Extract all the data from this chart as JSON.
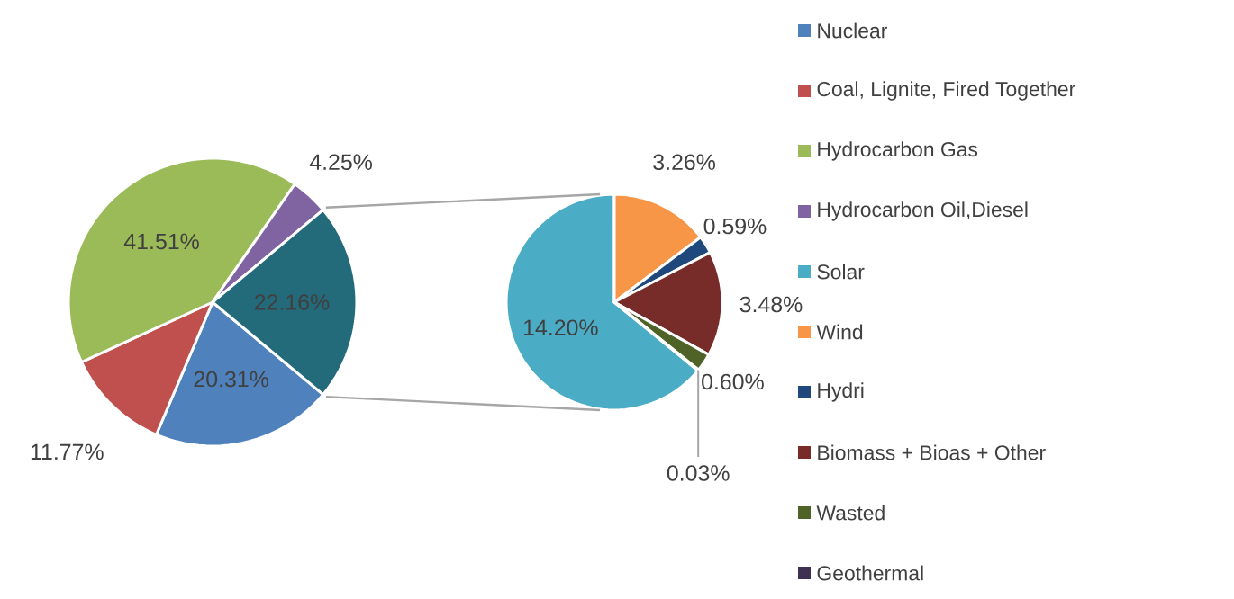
{
  "chart_data": [
    {
      "type": "pie",
      "categories": [
        "Nuclear",
        "Coal, Lignite, Fired Together",
        "Hydrocarbon Gas",
        "Hydrocarbon Oil,Diesel",
        null
      ],
      "values": [
        20.31,
        11.77,
        41.51,
        4.25,
        22.16
      ],
      "colors": [
        "#4f81bd",
        "#c0504d",
        "#9bbb59",
        "#8064a2",
        "#236a7a"
      ],
      "value_labels": [
        "20.31%",
        "11.77%",
        "41.51%",
        "4.25%",
        "22.16%"
      ],
      "legend": "right"
    },
    {
      "type": "pie",
      "categories": [
        "Solar",
        "Wind",
        "Hydri",
        "Biomass + Bioas + Other",
        "Wasted",
        "Geothermal"
      ],
      "values": [
        14.2,
        3.26,
        0.59,
        3.48,
        0.6,
        0.03
      ],
      "colors": [
        "#4bacc6",
        "#f79646",
        "#1f497d",
        "#772c2a",
        "#4f6228",
        "#3f3151"
      ],
      "value_labels": [
        "14.20%",
        "3.26%",
        "0.59%",
        "3.48%",
        "0.60%",
        "0.03%"
      ],
      "legend": "right"
    }
  ]
}
